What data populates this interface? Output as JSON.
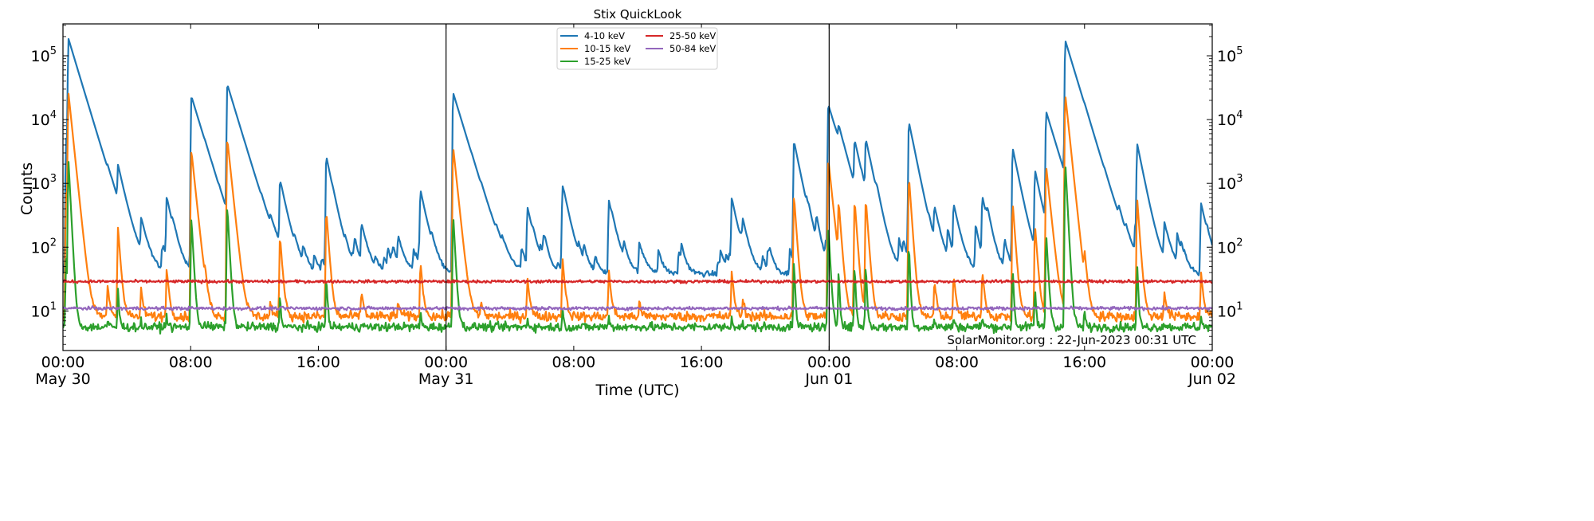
{
  "chart_data": {
    "type": "line",
    "title": "Stix QuickLook",
    "xlabel": "Time (UTC)",
    "ylabel": "Counts",
    "yscale": "log",
    "ylim": [
      2.4,
      316000
    ],
    "xlim_hours": [
      0,
      72
    ],
    "x_start": "2023-05-30 00:00 UTC",
    "x_end": "2023-06-02 00:00 UTC",
    "annotation": "SolarMonitor.org : 22-Jun-2023 00:31 UTC",
    "legend_position": "top-center",
    "day_separators_hours": [
      24,
      48
    ],
    "x_ticks": [
      {
        "hour": 0,
        "time": "00:00",
        "date": "May 30"
      },
      {
        "hour": 8,
        "time": "08:00",
        "date": ""
      },
      {
        "hour": 16,
        "time": "16:00",
        "date": ""
      },
      {
        "hour": 24,
        "time": "00:00",
        "date": "May 31"
      },
      {
        "hour": 32,
        "time": "08:00",
        "date": ""
      },
      {
        "hour": 40,
        "time": "16:00",
        "date": ""
      },
      {
        "hour": 48,
        "time": "00:00",
        "date": "Jun 01"
      },
      {
        "hour": 56,
        "time": "08:00",
        "date": ""
      },
      {
        "hour": 64,
        "time": "16:00",
        "date": ""
      },
      {
        "hour": 72,
        "time": "00:00",
        "date": "Jun 02"
      }
    ],
    "y_ticks": [
      {
        "value": 10,
        "base": "10",
        "exp": "1"
      },
      {
        "value": 100,
        "base": "10",
        "exp": "2"
      },
      {
        "value": 1000,
        "base": "10",
        "exp": "3"
      },
      {
        "value": 10000,
        "base": "10",
        "exp": "4"
      },
      {
        "value": 100000,
        "base": "10",
        "exp": "5"
      }
    ],
    "series": [
      {
        "name": "4-10 keV",
        "color": "#1f77b4",
        "baseline": 38,
        "flare_ratio": 1.0,
        "noise": 0.05
      },
      {
        "name": "10-15 keV",
        "color": "#ff7f0e",
        "baseline": 8.2,
        "flare_ratio": 0.14,
        "noise": 0.09
      },
      {
        "name": "15-25 keV",
        "color": "#2ca02c",
        "baseline": 5.6,
        "flare_ratio": 0.012,
        "noise": 0.08
      },
      {
        "name": "25-50 keV",
        "color": "#d62728",
        "baseline": 29,
        "flare_ratio": 0.0,
        "noise": 0.025
      },
      {
        "name": "50-84 keV",
        "color": "#9467bd",
        "baseline": 11,
        "flare_ratio": 0.0,
        "noise": 0.03
      }
    ],
    "flares_4_10keV": [
      {
        "hour": 0.2,
        "peak": 5000
      },
      {
        "hour": 0.35,
        "peak": 180000
      },
      {
        "hour": 2.8,
        "peak": 240
      },
      {
        "hour": 3.45,
        "peak": 1400
      },
      {
        "hour": 4.9,
        "peak": 200
      },
      {
        "hour": 6.5,
        "peak": 550
      },
      {
        "hour": 8.05,
        "peak": 23000
      },
      {
        "hour": 8.9,
        "peak": 200
      },
      {
        "hour": 10.3,
        "peak": 35000
      },
      {
        "hour": 13.0,
        "peak": 80
      },
      {
        "hour": 13.6,
        "peak": 1000
      },
      {
        "hour": 16.5,
        "peak": 2600
      },
      {
        "hour": 18.7,
        "peak": 180
      },
      {
        "hour": 21.0,
        "peak": 95
      },
      {
        "hour": 22.4,
        "peak": 700
      },
      {
        "hour": 24.45,
        "peak": 26000
      },
      {
        "hour": 26.2,
        "peak": 90
      },
      {
        "hour": 29.1,
        "peak": 370
      },
      {
        "hour": 31.3,
        "peak": 850
      },
      {
        "hour": 34.2,
        "peak": 500
      },
      {
        "hour": 36.1,
        "peak": 75
      },
      {
        "hour": 41.9,
        "peak": 480
      },
      {
        "hour": 42.6,
        "peak": 100
      },
      {
        "hour": 45.8,
        "peak": 4500
      },
      {
        "hour": 47.95,
        "peak": 17000
      },
      {
        "hour": 48.6,
        "peak": 3200
      },
      {
        "hour": 49.6,
        "peak": 3800
      },
      {
        "hour": 50.3,
        "peak": 4000
      },
      {
        "hour": 53.0,
        "peak": 9000
      },
      {
        "hour": 54.6,
        "peak": 300
      },
      {
        "hour": 55.8,
        "peak": 400
      },
      {
        "hour": 57.6,
        "peak": 500
      },
      {
        "hour": 59.5,
        "peak": 3500
      },
      {
        "hour": 60.9,
        "peak": 1500
      },
      {
        "hour": 61.6,
        "peak": 13000
      },
      {
        "hour": 62.8,
        "peak": 170000
      },
      {
        "hour": 64.0,
        "peak": 800
      },
      {
        "hour": 67.3,
        "peak": 4000
      },
      {
        "hour": 69.0,
        "peak": 180
      },
      {
        "hour": 71.3,
        "peak": 450
      }
    ]
  }
}
